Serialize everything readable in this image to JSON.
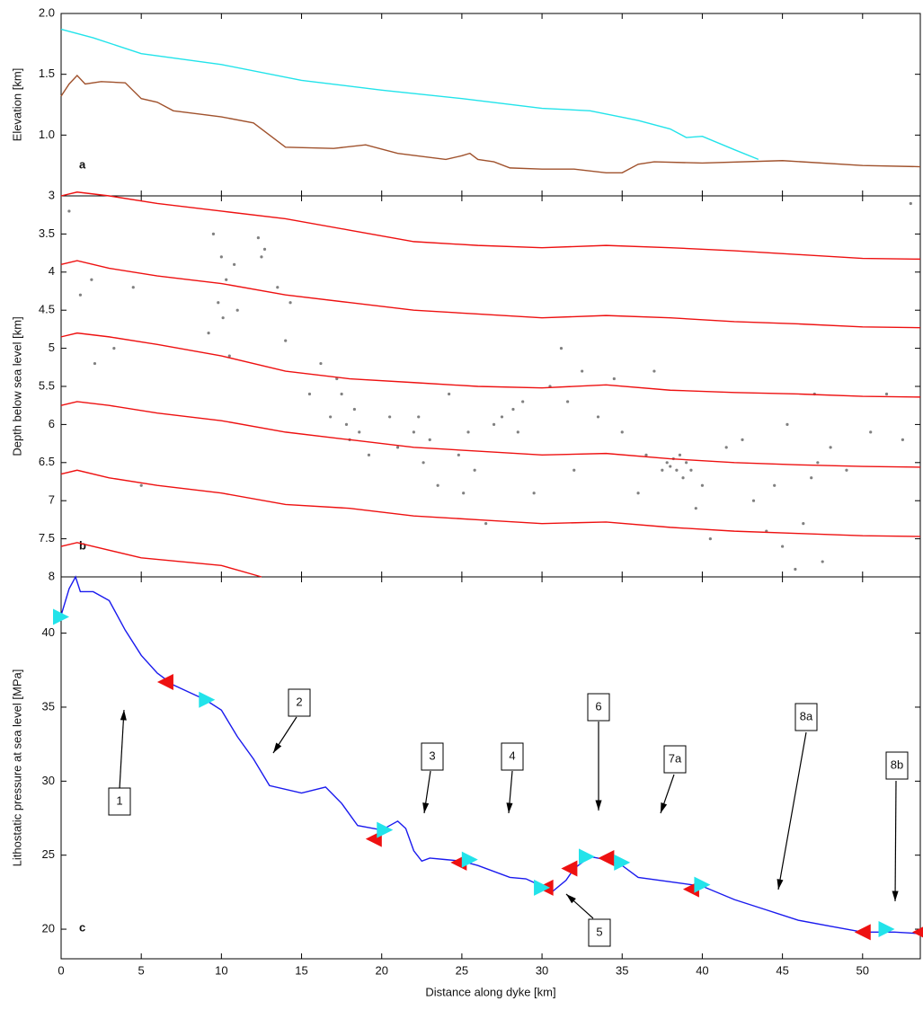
{
  "chart_data": [
    {
      "type": "line",
      "panel_label": "a",
      "y_label": "Elevation [km]",
      "xlim": [
        0,
        53.6
      ],
      "ylim": [
        0.5,
        2.0
      ],
      "yticks": [
        {
          "value": 1,
          "label": "1.0"
        },
        1.5,
        {
          "value": 2,
          "label": "2.0"
        }
      ],
      "series": [
        {
          "color": "#22e3ea",
          "x": [
            0,
            2,
            5,
            10,
            15,
            20,
            25,
            30,
            33,
            36,
            38,
            39,
            40,
            42,
            43.5
          ],
          "values": [
            1.87,
            1.8,
            1.67,
            1.58,
            1.45,
            1.37,
            1.3,
            1.22,
            1.2,
            1.12,
            1.05,
            0.98,
            0.99,
            0.88,
            0.8
          ]
        },
        {
          "color": "#a0522d",
          "x": [
            0,
            0.5,
            1,
            1.5,
            2.5,
            4,
            5,
            6,
            7,
            10,
            12,
            14,
            17,
            19,
            21,
            24,
            25,
            25.5,
            26,
            27,
            28,
            30,
            32,
            34,
            35,
            36,
            37,
            40,
            45,
            50,
            53.6
          ],
          "values": [
            1.32,
            1.42,
            1.49,
            1.42,
            1.44,
            1.43,
            1.3,
            1.27,
            1.2,
            1.15,
            1.1,
            0.9,
            0.89,
            0.92,
            0.85,
            0.8,
            0.83,
            0.85,
            0.8,
            0.78,
            0.73,
            0.72,
            0.72,
            0.69,
            0.69,
            0.76,
            0.78,
            0.77,
            0.79,
            0.75,
            0.74
          ]
        }
      ]
    },
    {
      "type": "scatter",
      "panel_label": "b",
      "y_label": "Depth below sea level [km]",
      "xlim": [
        0,
        53.6
      ],
      "ylim": [
        3,
        8
      ],
      "y_inverted": true,
      "yticks": [
        3,
        3.5,
        4,
        4.5,
        5,
        5.5,
        6,
        6.5,
        7,
        7.5,
        8
      ],
      "points": {
        "color": "#808080",
        "x": [
          0.5,
          1.2,
          1.9,
          2.1,
          3.3,
          4.5,
          5,
          9.2,
          9.5,
          9.8,
          10,
          10.1,
          10.3,
          10.5,
          10.8,
          11,
          12.3,
          12.5,
          12.7,
          13.5,
          14,
          14.3,
          15.5,
          16.2,
          16.8,
          17.2,
          17.5,
          17.8,
          18,
          18.3,
          18.6,
          19.2,
          20.5,
          21,
          22,
          22.3,
          22.6,
          23,
          23.5,
          24.2,
          24.8,
          25.1,
          25.4,
          25.8,
          26.5,
          27,
          27.5,
          28.2,
          28.5,
          28.8,
          29.5,
          30.5,
          31.2,
          31.6,
          32,
          32.5,
          33.5,
          34.5,
          35,
          36,
          36.5,
          37,
          37.5,
          37.8,
          38,
          38.2,
          38.4,
          38.6,
          38.8,
          39,
          39.3,
          39.6,
          40,
          40.5,
          41.5,
          42.5,
          43.2,
          44,
          44.5,
          45,
          45.3,
          45.8,
          46.3,
          46.8,
          47,
          47.2,
          47.5,
          48,
          49,
          50.5,
          51.5,
          52.5,
          53
        ],
        "y": [
          3.2,
          4.3,
          4.1,
          5.2,
          5,
          4.2,
          6.8,
          4.8,
          3.5,
          4.4,
          3.8,
          4.6,
          4.1,
          5.1,
          3.9,
          4.5,
          3.55,
          3.8,
          3.7,
          4.2,
          4.9,
          4.4,
          5.6,
          5.2,
          5.9,
          5.4,
          5.6,
          6,
          6.2,
          5.8,
          6.1,
          6.4,
          5.9,
          6.3,
          6.1,
          5.9,
          6.5,
          6.2,
          6.8,
          5.6,
          6.4,
          6.9,
          6.1,
          6.6,
          7.3,
          6,
          5.9,
          5.8,
          6.1,
          5.7,
          6.9,
          5.5,
          5,
          5.7,
          6.6,
          5.3,
          5.9,
          5.4,
          6.1,
          6.9,
          6.4,
          5.3,
          6.6,
          6.5,
          6.55,
          6.45,
          6.6,
          6.4,
          6.7,
          6.5,
          6.6,
          7.1,
          6.8,
          7.5,
          6.3,
          6.2,
          7,
          7.4,
          6.8,
          7.6,
          6,
          7.9,
          7.3,
          6.7,
          5.6,
          6.5,
          7.8,
          6.3,
          6.6,
          6.1,
          5.6,
          6.2,
          3.1
        ]
      },
      "series": [
        {
          "color": "#ee1111",
          "x": [
            0,
            1,
            3,
            6,
            10,
            14,
            18,
            22,
            26,
            30,
            34,
            38,
            42,
            46,
            50,
            53.6
          ],
          "values": [
            3.0,
            2.95,
            3.0,
            3.1,
            3.2,
            3.3,
            3.45,
            3.6,
            3.65,
            3.68,
            3.65,
            3.68,
            3.72,
            3.77,
            3.82,
            3.83
          ]
        },
        {
          "color": "#ee1111",
          "x": [
            0,
            1,
            3,
            6,
            10,
            14,
            18,
            22,
            26,
            30,
            34,
            38,
            42,
            46,
            50,
            53.6
          ],
          "values": [
            3.9,
            3.85,
            3.95,
            4.05,
            4.15,
            4.3,
            4.4,
            4.5,
            4.55,
            4.6,
            4.57,
            4.6,
            4.65,
            4.68,
            4.72,
            4.73
          ]
        },
        {
          "color": "#ee1111",
          "x": [
            0,
            1,
            3,
            6,
            10,
            14,
            18,
            22,
            26,
            30,
            34,
            38,
            42,
            46,
            50,
            53.6
          ],
          "values": [
            4.85,
            4.8,
            4.85,
            4.95,
            5.1,
            5.3,
            5.4,
            5.45,
            5.5,
            5.52,
            5.48,
            5.55,
            5.58,
            5.6,
            5.63,
            5.64
          ]
        },
        {
          "color": "#ee1111",
          "x": [
            0,
            1,
            3,
            6,
            10,
            14,
            18,
            22,
            26,
            30,
            34,
            38,
            42,
            46,
            50,
            53.6
          ],
          "values": [
            5.75,
            5.7,
            5.75,
            5.85,
            5.95,
            6.1,
            6.2,
            6.3,
            6.35,
            6.4,
            6.38,
            6.45,
            6.5,
            6.53,
            6.55,
            6.56
          ]
        },
        {
          "color": "#ee1111",
          "x": [
            0,
            1,
            3,
            6,
            10,
            14,
            18,
            22,
            26,
            30,
            34,
            38,
            42,
            46,
            50,
            53.6
          ],
          "values": [
            6.65,
            6.6,
            6.7,
            6.8,
            6.9,
            7.05,
            7.1,
            7.2,
            7.25,
            7.3,
            7.28,
            7.35,
            7.4,
            7.43,
            7.46,
            7.47
          ]
        },
        {
          "color": "#ee1111",
          "x": [
            0,
            1,
            5,
            10,
            12.5
          ],
          "values": [
            7.6,
            7.55,
            7.75,
            7.85,
            8.0
          ]
        }
      ]
    },
    {
      "type": "line",
      "panel_label": "c",
      "y_label": "Lithostatic pressure at sea level [MPa]",
      "x_label": "Distance along dyke [km]",
      "xlim": [
        0,
        53.6
      ],
      "ylim": [
        18,
        43.8
      ],
      "xticks": [
        0,
        5,
        10,
        15,
        20,
        25,
        30,
        35,
        40,
        45,
        50
      ],
      "yticks": [
        20,
        25,
        30,
        35,
        40
      ],
      "series": [
        {
          "color": "#1a1aee",
          "x": [
            0,
            0.5,
            0.9,
            1.2,
            2,
            3,
            4,
            5,
            6,
            7,
            8,
            9,
            10,
            11,
            12,
            13,
            15,
            16.5,
            17.5,
            18.5,
            20,
            21,
            21.5,
            22,
            22.5,
            23,
            24,
            25,
            26,
            28,
            29,
            30,
            30.6,
            31.5,
            32,
            33,
            34,
            35,
            36,
            38,
            40,
            42,
            44,
            46,
            48,
            50,
            52,
            53.6
          ],
          "values": [
            41.2,
            43,
            43.8,
            42.8,
            42.8,
            42.2,
            40.2,
            38.5,
            37.3,
            36.5,
            36,
            35.5,
            34.8,
            33,
            31.5,
            29.7,
            29.2,
            29.6,
            28.5,
            27,
            26.7,
            27.3,
            26.8,
            25.3,
            24.6,
            24.8,
            24.7,
            24.6,
            24.3,
            23.5,
            23.4,
            22.9,
            22.5,
            23.3,
            24.1,
            24.9,
            24.7,
            24.3,
            23.5,
            23.2,
            22.9,
            22,
            21.3,
            20.6,
            20.2,
            19.8,
            19.8,
            19.7
          ]
        }
      ],
      "markers": [
        {
          "color": "#ee1111",
          "direction": "left",
          "x": [
            6.5,
            19.5,
            24.8,
            30.2,
            31.7,
            34,
            39.3,
            50,
            53.6
          ],
          "values": [
            36.7,
            26.1,
            24.5,
            22.8,
            24.1,
            24.8,
            22.7,
            19.8,
            19.8
          ]
        },
        {
          "color": "#22e3ea",
          "direction": "right",
          "x": [
            0,
            9.1,
            20.2,
            25.5,
            30,
            32.8,
            35,
            40,
            51.5
          ],
          "values": [
            41.1,
            35.5,
            26.7,
            24.7,
            22.8,
            24.9,
            24.5,
            23,
            20
          ]
        }
      ],
      "annotations": [
        "1",
        "2",
        "3",
        "4",
        "5",
        "6",
        "7a",
        "8a",
        "8b"
      ]
    }
  ]
}
